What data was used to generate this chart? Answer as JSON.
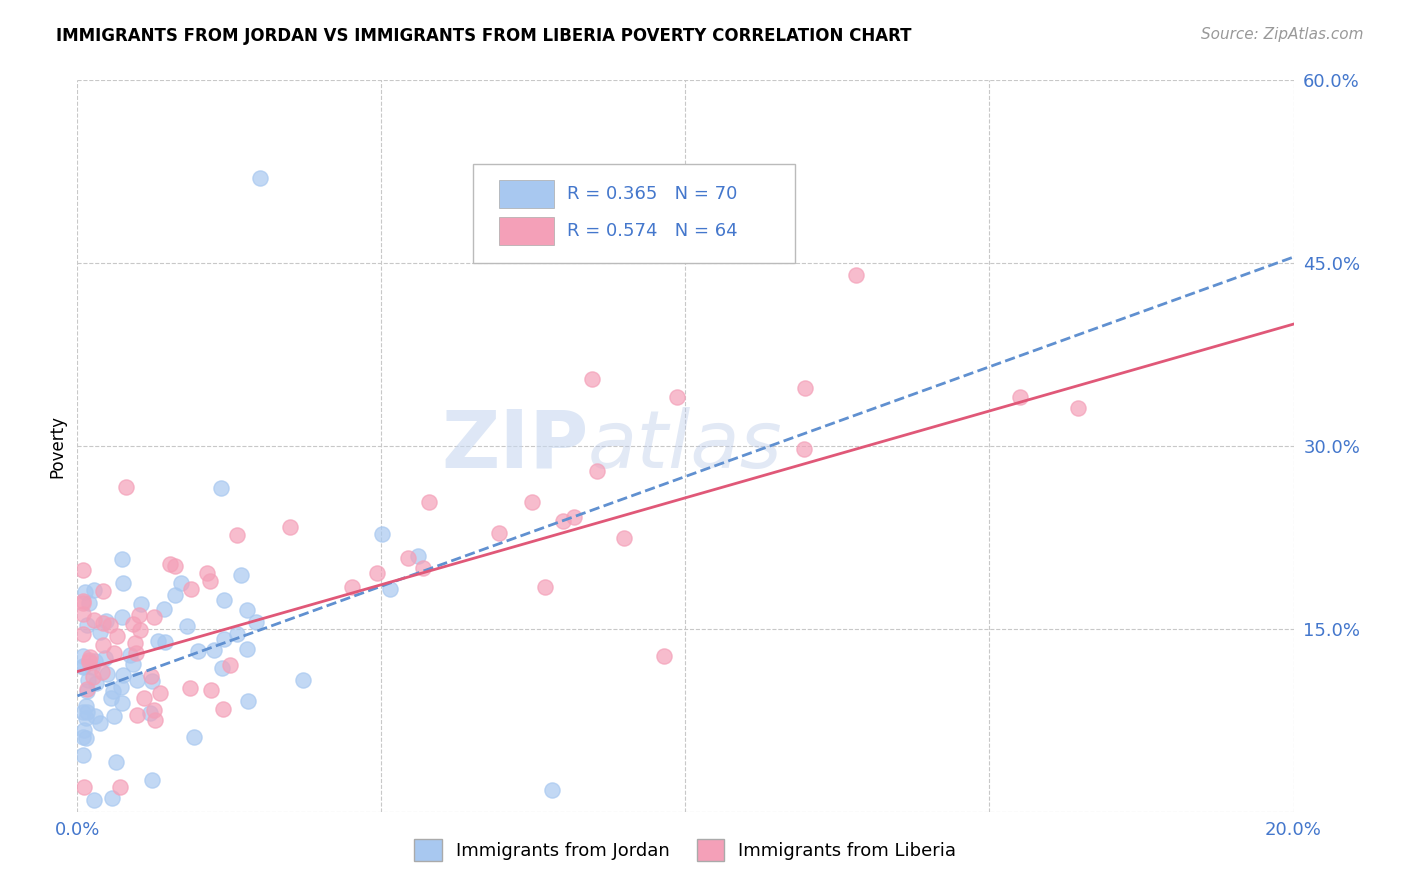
{
  "title": "IMMIGRANTS FROM JORDAN VS IMMIGRANTS FROM LIBERIA POVERTY CORRELATION CHART",
  "source": "Source: ZipAtlas.com",
  "ylabel": "Poverty",
  "xlim": [
    0.0,
    0.2
  ],
  "ylim": [
    0.0,
    0.6
  ],
  "xticks": [
    0.0,
    0.05,
    0.1,
    0.15,
    0.2
  ],
  "yticks": [
    0.0,
    0.15,
    0.3,
    0.45,
    0.6
  ],
  "jordan_R": 0.365,
  "jordan_N": 70,
  "liberia_R": 0.574,
  "liberia_N": 64,
  "jordan_color": "#A8C8F0",
  "liberia_color": "#F4A0B8",
  "jordan_line_color": "#6090D0",
  "liberia_line_color": "#E05878",
  "background_color": "#FFFFFF",
  "grid_color": "#C8C8C8",
  "axis_label_color": "#4477CC",
  "watermark_color": "#C8D8F0",
  "jordan_line_x0": 0.0,
  "jordan_line_y0": 0.095,
  "jordan_line_x1": 0.2,
  "jordan_line_y1": 0.455,
  "liberia_line_x0": 0.0,
  "liberia_line_y0": 0.115,
  "liberia_line_x1": 0.2,
  "liberia_line_y1": 0.4
}
